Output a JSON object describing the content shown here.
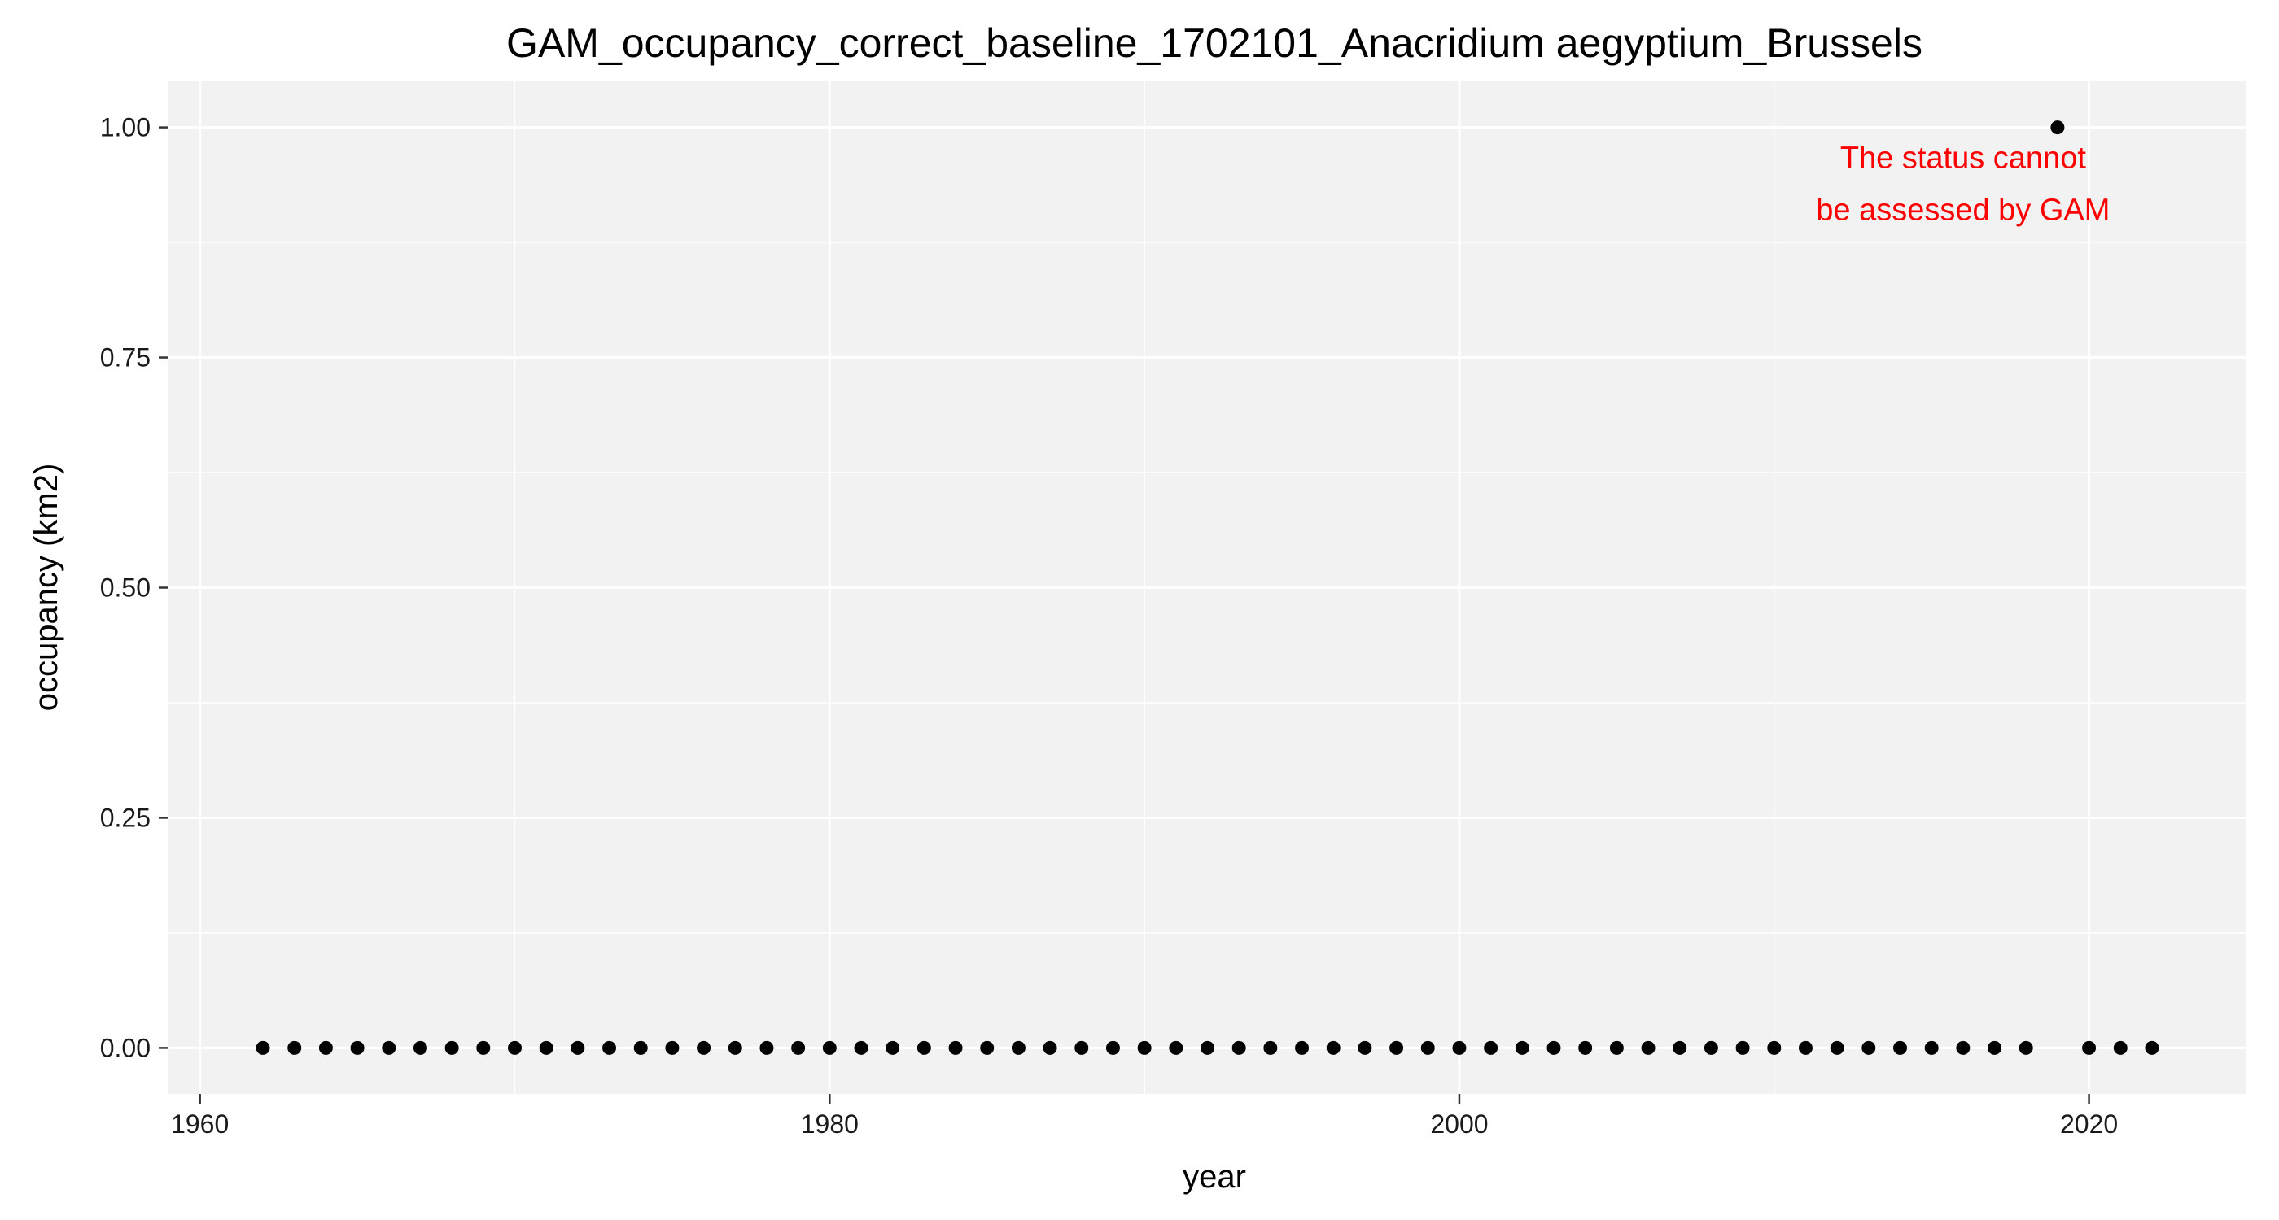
{
  "chart_data": {
    "type": "scatter",
    "title": "GAM_occupancy_correct_baseline_1702101_Anacridium aegyptium_Brussels",
    "xlabel": "year",
    "ylabel": "occupancy (km2)",
    "xlim": [
      1959,
      2025
    ],
    "ylim": [
      -0.05,
      1.05
    ],
    "x_ticks": [
      1960,
      1980,
      2000,
      2020
    ],
    "y_ticks": [
      0,
      0.25,
      0.5,
      0.75,
      1
    ],
    "x_tick_labels": [
      "1960",
      "1980",
      "2000",
      "2020"
    ],
    "y_tick_labels": [
      "0.00",
      "0.25",
      "0.50",
      "0.75",
      "1.00"
    ],
    "grid": true,
    "legend": "none",
    "point_color": "#000000",
    "panel_background": "#f2f2f2",
    "grid_color": "#ffffff",
    "annotation": {
      "lines": [
        "The status cannot",
        "be assessed by GAM"
      ],
      "color": "#ff0000",
      "x": 2016,
      "y": 0.94
    },
    "series": [
      {
        "x": [
          1962,
          1963,
          1964,
          1965,
          1966,
          1967,
          1968,
          1969,
          1970,
          1971,
          1972,
          1973,
          1974,
          1975,
          1976,
          1977,
          1978,
          1979,
          1980,
          1981,
          1982,
          1983,
          1984,
          1985,
          1986,
          1987,
          1988,
          1989,
          1990,
          1991,
          1992,
          1993,
          1994,
          1995,
          1996,
          1997,
          1998,
          1999,
          2000,
          2001,
          2002,
          2003,
          2004,
          2005,
          2006,
          2007,
          2008,
          2009,
          2010,
          2011,
          2012,
          2013,
          2014,
          2015,
          2016,
          2017,
          2018,
          2019,
          2020,
          2021,
          2022
        ],
        "y": [
          0,
          0,
          0,
          0,
          0,
          0,
          0,
          0,
          0,
          0,
          0,
          0,
          0,
          0,
          0,
          0,
          0,
          0,
          0,
          0,
          0,
          0,
          0,
          0,
          0,
          0,
          0,
          0,
          0,
          0,
          0,
          0,
          0,
          0,
          0,
          0,
          0,
          0,
          0,
          0,
          0,
          0,
          0,
          0,
          0,
          0,
          0,
          0,
          0,
          0,
          0,
          0,
          0,
          0,
          0,
          0,
          0,
          1,
          0,
          0,
          0
        ]
      }
    ]
  }
}
